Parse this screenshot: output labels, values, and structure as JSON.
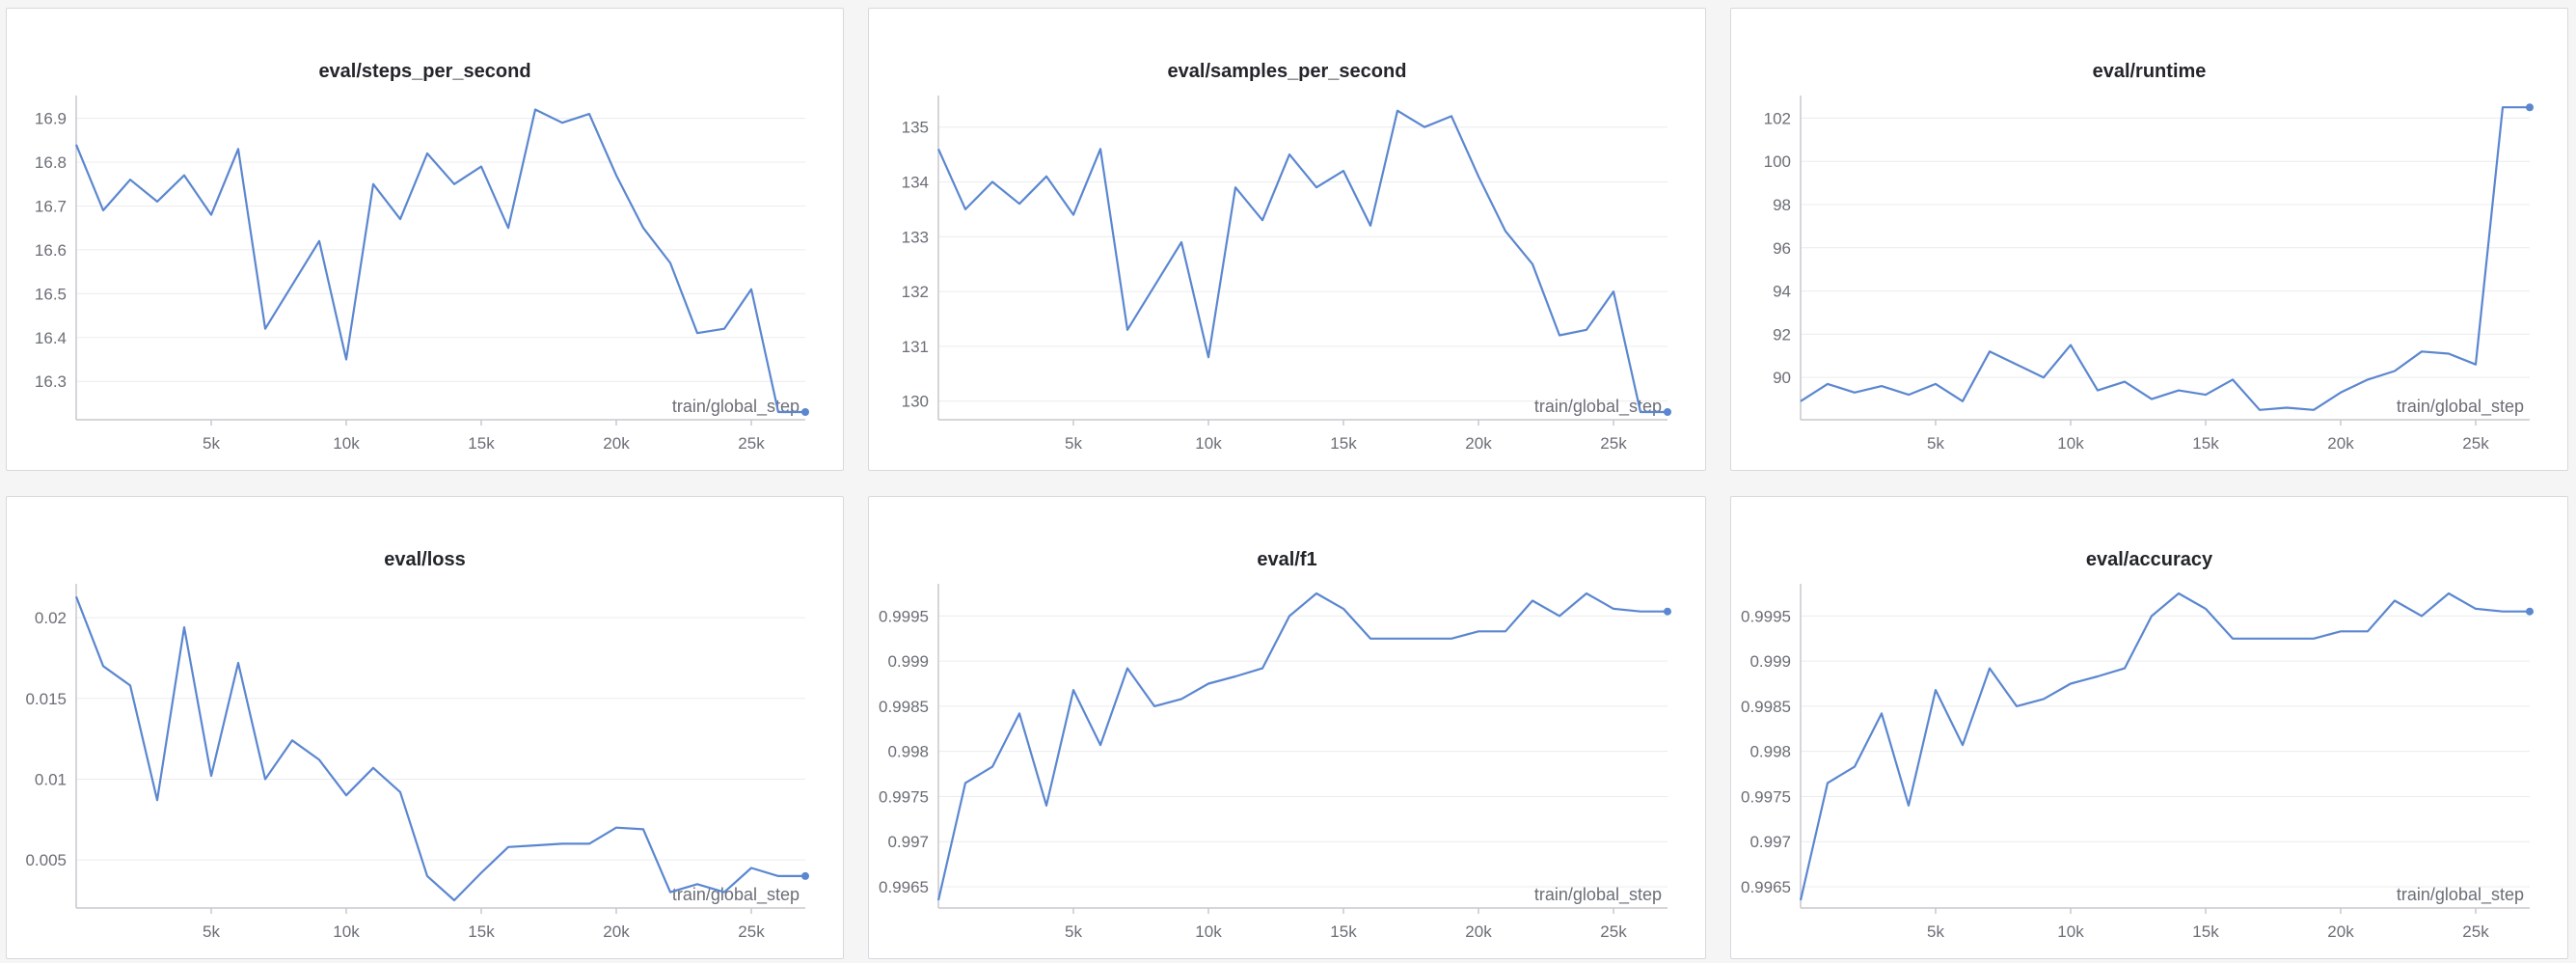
{
  "colors": {
    "line": "#5b87d0",
    "grid": "#ececee",
    "axis": "#c8c9cd",
    "text": "#6b6e76"
  },
  "panels": [
    {
      "title": "eval/steps_per_second"
    },
    {
      "title": "eval/samples_per_second"
    },
    {
      "title": "eval/runtime"
    },
    {
      "title": "eval/loss"
    },
    {
      "title": "eval/f1"
    },
    {
      "title": "eval/accuracy"
    }
  ],
  "chart_data": [
    {
      "type": "line",
      "title": "eval/steps_per_second",
      "xlabel": "train/global_step",
      "xlim": [
        0,
        27000
      ],
      "ylim": [
        16.23,
        16.93
      ],
      "xticks": [
        5000,
        10000,
        15000,
        20000,
        25000
      ],
      "xtick_labels": [
        "5k",
        "10k",
        "15k",
        "20k",
        "25k"
      ],
      "yticks": [
        16.3,
        16.4,
        16.5,
        16.6,
        16.7,
        16.8,
        16.9
      ],
      "ytick_labels": [
        "16.3",
        "16.4",
        "16.5",
        "16.6",
        "16.7",
        "16.8",
        "16.9"
      ],
      "x": [
        0,
        1000,
        2000,
        3000,
        4000,
        5000,
        6000,
        7000,
        8000,
        9000,
        10000,
        11000,
        12000,
        13000,
        14000,
        15000,
        16000,
        17000,
        18000,
        19000,
        20000,
        21000,
        22000,
        23000,
        24000,
        25000,
        26000,
        27000
      ],
      "y": [
        16.84,
        16.69,
        16.76,
        16.71,
        16.77,
        16.68,
        16.83,
        16.42,
        16.52,
        16.62,
        16.35,
        16.75,
        16.67,
        16.82,
        16.75,
        16.79,
        16.65,
        16.92,
        16.89,
        16.91,
        16.77,
        16.65,
        16.57,
        16.41,
        16.42,
        16.51,
        16.23,
        16.23
      ]
    },
    {
      "type": "line",
      "title": "eval/samples_per_second",
      "xlabel": "train/global_step",
      "xlim": [
        0,
        27000
      ],
      "ylim": [
        129.8,
        135.4
      ],
      "xticks": [
        5000,
        10000,
        15000,
        20000,
        25000
      ],
      "xtick_labels": [
        "5k",
        "10k",
        "15k",
        "20k",
        "25k"
      ],
      "yticks": [
        130,
        131,
        132,
        133,
        134,
        135
      ],
      "ytick_labels": [
        "130",
        "131",
        "132",
        "133",
        "134",
        "135"
      ],
      "x": [
        0,
        1000,
        2000,
        3000,
        4000,
        5000,
        6000,
        7000,
        8000,
        9000,
        10000,
        11000,
        12000,
        13000,
        14000,
        15000,
        16000,
        17000,
        18000,
        19000,
        20000,
        21000,
        22000,
        23000,
        24000,
        25000,
        26000,
        27000
      ],
      "y": [
        134.6,
        133.5,
        134.0,
        133.6,
        134.1,
        133.4,
        134.6,
        131.3,
        132.1,
        132.9,
        130.8,
        133.9,
        133.3,
        134.5,
        133.9,
        134.2,
        133.2,
        135.3,
        135.0,
        135.2,
        134.1,
        133.1,
        132.5,
        131.2,
        131.3,
        132.0,
        129.8,
        129.8
      ]
    },
    {
      "type": "line",
      "title": "eval/runtime",
      "xlabel": "train/global_step",
      "xlim": [
        0,
        27000
      ],
      "ylim": [
        88.4,
        102.6
      ],
      "xticks": [
        5000,
        10000,
        15000,
        20000,
        25000
      ],
      "xtick_labels": [
        "5k",
        "10k",
        "15k",
        "20k",
        "25k"
      ],
      "yticks": [
        90,
        92,
        94,
        96,
        98,
        100,
        102
      ],
      "ytick_labels": [
        "90",
        "92",
        "94",
        "96",
        "98",
        "100",
        "102"
      ],
      "x": [
        0,
        1000,
        2000,
        3000,
        4000,
        5000,
        6000,
        7000,
        8000,
        9000,
        10000,
        11000,
        12000,
        13000,
        14000,
        15000,
        16000,
        17000,
        18000,
        19000,
        20000,
        21000,
        22000,
        23000,
        24000,
        25000,
        26000,
        27000
      ],
      "y": [
        88.9,
        89.7,
        89.3,
        89.6,
        89.2,
        89.7,
        88.9,
        91.2,
        90.6,
        90.0,
        91.5,
        89.4,
        89.8,
        89.0,
        89.4,
        89.2,
        89.9,
        88.5,
        88.6,
        88.5,
        89.3,
        89.9,
        90.3,
        91.2,
        91.1,
        90.6,
        102.5,
        102.5
      ]
    },
    {
      "type": "line",
      "title": "eval/loss",
      "xlabel": "train/global_step",
      "xlim": [
        0,
        27000
      ],
      "ylim": [
        0.0025,
        0.0215
      ],
      "xticks": [
        5000,
        10000,
        15000,
        20000,
        25000
      ],
      "xtick_labels": [
        "5k",
        "10k",
        "15k",
        "20k",
        "25k"
      ],
      "yticks": [
        0.005,
        0.01,
        0.015,
        0.02
      ],
      "ytick_labels": [
        "0.005",
        "0.01",
        "0.015",
        "0.02"
      ],
      "x": [
        0,
        1000,
        2000,
        3000,
        4000,
        5000,
        6000,
        7000,
        8000,
        9000,
        10000,
        11000,
        12000,
        13000,
        14000,
        15000,
        16000,
        17000,
        18000,
        19000,
        20000,
        21000,
        22000,
        23000,
        24000,
        25000,
        26000,
        27000
      ],
      "y": [
        0.0213,
        0.017,
        0.0158,
        0.0087,
        0.0194,
        0.0102,
        0.0172,
        0.01,
        0.0124,
        0.0112,
        0.009,
        0.0107,
        0.0092,
        0.004,
        0.0025,
        0.0042,
        0.0058,
        0.0059,
        0.006,
        0.006,
        0.007,
        0.0069,
        0.003,
        0.0035,
        0.003,
        0.0045,
        0.004,
        0.004
      ]
    },
    {
      "type": "line",
      "title": "eval/f1",
      "xlabel": "train/global_step",
      "xlim": [
        0,
        27000
      ],
      "ylim": [
        0.99635,
        0.99975
      ],
      "xticks": [
        5000,
        10000,
        15000,
        20000,
        25000
      ],
      "xtick_labels": [
        "5k",
        "10k",
        "15k",
        "20k",
        "25k"
      ],
      "yticks": [
        0.9965,
        0.997,
        0.9975,
        0.998,
        0.9985,
        0.999,
        0.9995
      ],
      "ytick_labels": [
        "0.9965",
        "0.997",
        "0.9975",
        "0.998",
        "0.9985",
        "0.999",
        "0.9995"
      ],
      "x": [
        0,
        1000,
        2000,
        3000,
        4000,
        5000,
        6000,
        7000,
        8000,
        9000,
        10000,
        11000,
        12000,
        13000,
        14000,
        15000,
        16000,
        17000,
        18000,
        19000,
        20000,
        21000,
        22000,
        23000,
        24000,
        25000,
        26000,
        27000
      ],
      "y": [
        0.99635,
        0.99765,
        0.99783,
        0.99842,
        0.9974,
        0.99868,
        0.99807,
        0.99892,
        0.9985,
        0.99858,
        0.99875,
        0.99883,
        0.99892,
        0.9995,
        0.99975,
        0.99958,
        0.99925,
        0.99925,
        0.99925,
        0.99925,
        0.99933,
        0.99933,
        0.99967,
        0.9995,
        0.99975,
        0.99958,
        0.99955,
        0.99955
      ]
    },
    {
      "type": "line",
      "title": "eval/accuracy",
      "xlabel": "train/global_step",
      "xlim": [
        0,
        27000
      ],
      "ylim": [
        0.99635,
        0.99975
      ],
      "xticks": [
        5000,
        10000,
        15000,
        20000,
        25000
      ],
      "xtick_labels": [
        "5k",
        "10k",
        "15k",
        "20k",
        "25k"
      ],
      "yticks": [
        0.9965,
        0.997,
        0.9975,
        0.998,
        0.9985,
        0.999,
        0.9995
      ],
      "ytick_labels": [
        "0.9965",
        "0.997",
        "0.9975",
        "0.998",
        "0.9985",
        "0.999",
        "0.9995"
      ],
      "x": [
        0,
        1000,
        2000,
        3000,
        4000,
        5000,
        6000,
        7000,
        8000,
        9000,
        10000,
        11000,
        12000,
        13000,
        14000,
        15000,
        16000,
        17000,
        18000,
        19000,
        20000,
        21000,
        22000,
        23000,
        24000,
        25000,
        26000,
        27000
      ],
      "y": [
        0.99635,
        0.99765,
        0.99783,
        0.99842,
        0.9974,
        0.99868,
        0.99807,
        0.99892,
        0.9985,
        0.99858,
        0.99875,
        0.99883,
        0.99892,
        0.9995,
        0.99975,
        0.99958,
        0.99925,
        0.99925,
        0.99925,
        0.99925,
        0.99933,
        0.99933,
        0.99967,
        0.9995,
        0.99975,
        0.99958,
        0.99955,
        0.99955
      ]
    }
  ]
}
